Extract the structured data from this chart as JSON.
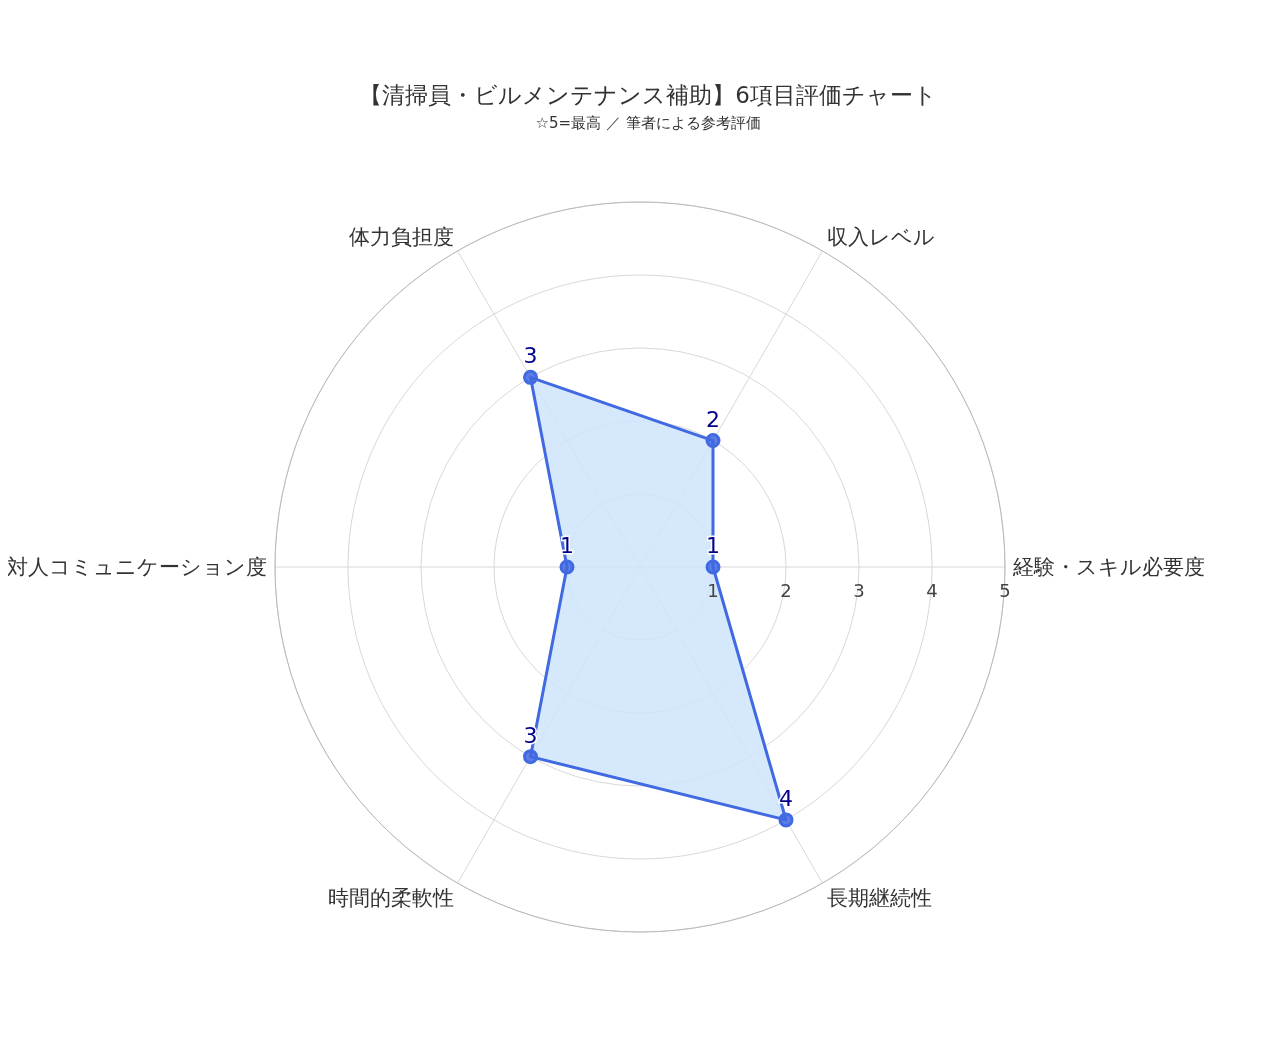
{
  "chart_data": {
    "type": "radar",
    "title": "【清掃員・ビルメンテナンス補助】6項目評価チャート",
    "subtitle": "☆5=最高 ／ 筆者による参考評価",
    "categories": [
      "収入レベル",
      "経験・スキル必要度",
      "長期継続性",
      "時間的柔軟性",
      "対人コミュニケーション度",
      "体力負担度"
    ],
    "series": [
      {
        "color": "#4169e1",
        "values": [
          2,
          1,
          4,
          3,
          1,
          3
        ]
      }
    ],
    "ylim": [
      0,
      5
    ],
    "yticks": [
      1,
      2,
      3,
      4,
      5
    ],
    "grid": true,
    "marker": "circle",
    "data_labels": true
  }
}
